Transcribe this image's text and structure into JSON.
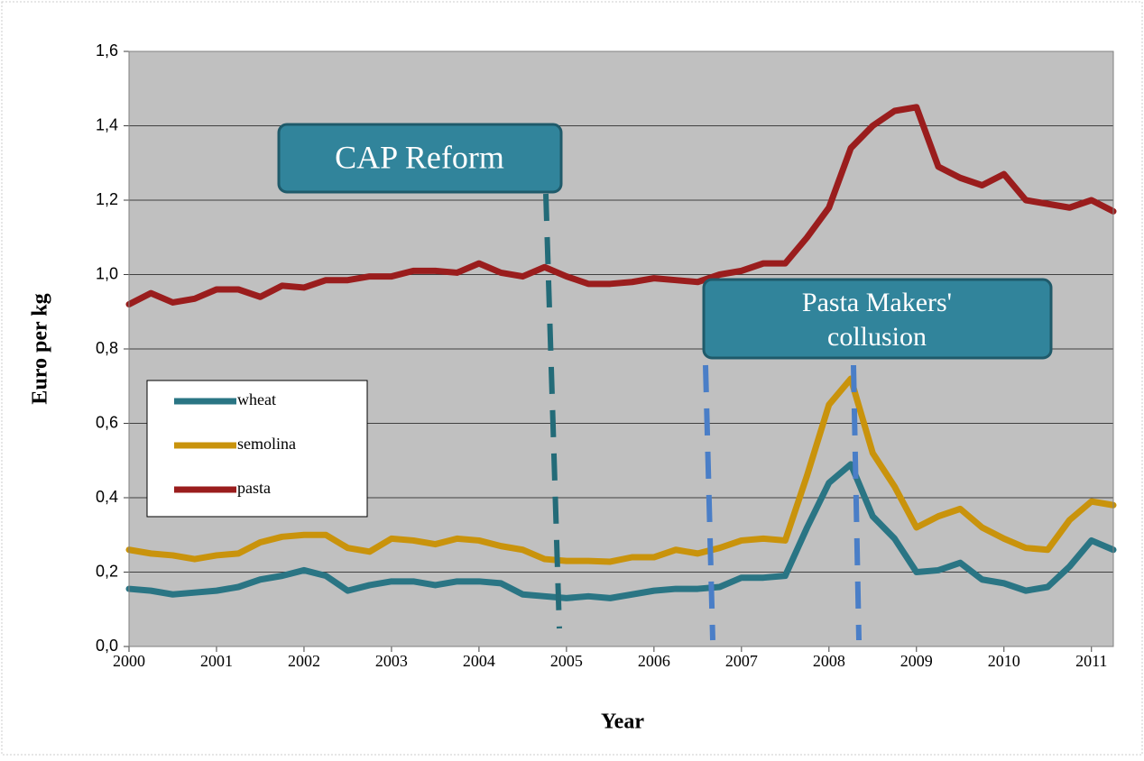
{
  "chart_data": {
    "type": "line",
    "x_label": "Year",
    "y_label": "Euro per kg",
    "x": [
      2000,
      2000.25,
      2000.5,
      2000.75,
      2001,
      2001.25,
      2001.5,
      2001.75,
      2002,
      2002.25,
      2002.5,
      2002.75,
      2003,
      2003.25,
      2003.5,
      2003.75,
      2004,
      2004.25,
      2004.5,
      2004.75,
      2005,
      2005.25,
      2005.5,
      2005.75,
      2006,
      2006.25,
      2006.5,
      2006.75,
      2007,
      2007.25,
      2007.5,
      2007.75,
      2008,
      2008.25,
      2008.5,
      2008.75,
      2009,
      2009.25,
      2009.5,
      2009.75,
      2010,
      2010.25,
      2010.5,
      2010.75,
      2011,
      2011.25
    ],
    "series": [
      {
        "name": "wheat",
        "color": "#2a7584",
        "values": [
          0.155,
          0.15,
          0.14,
          0.145,
          0.15,
          0.16,
          0.18,
          0.19,
          0.205,
          0.19,
          0.15,
          0.165,
          0.175,
          0.175,
          0.165,
          0.175,
          0.175,
          0.17,
          0.14,
          0.135,
          0.13,
          0.135,
          0.13,
          0.14,
          0.15,
          0.155,
          0.155,
          0.16,
          0.185,
          0.185,
          0.19,
          0.32,
          0.44,
          0.49,
          0.35,
          0.29,
          0.2,
          0.205,
          0.225,
          0.18,
          0.17,
          0.15,
          0.16,
          0.215,
          0.285,
          0.26
        ]
      },
      {
        "name": "semolina",
        "color": "#c9930c",
        "values": [
          0.26,
          0.25,
          0.245,
          0.235,
          0.245,
          0.25,
          0.28,
          0.295,
          0.3,
          0.3,
          0.265,
          0.255,
          0.29,
          0.285,
          0.275,
          0.29,
          0.285,
          0.27,
          0.26,
          0.235,
          0.23,
          0.23,
          0.228,
          0.24,
          0.24,
          0.26,
          0.25,
          0.265,
          0.285,
          0.29,
          0.285,
          0.46,
          0.65,
          0.72,
          0.52,
          0.43,
          0.32,
          0.35,
          0.37,
          0.32,
          0.29,
          0.265,
          0.26,
          0.34,
          0.39,
          0.38
        ]
      },
      {
        "name": "pasta",
        "color": "#9a1d1d",
        "values": [
          0.92,
          0.95,
          0.925,
          0.935,
          0.96,
          0.96,
          0.94,
          0.97,
          0.965,
          0.985,
          0.985,
          0.995,
          0.995,
          1.01,
          1.01,
          1.005,
          1.03,
          1.005,
          0.995,
          1.02,
          0.995,
          0.975,
          0.975,
          0.98,
          0.99,
          0.985,
          0.98,
          1.0,
          1.01,
          1.03,
          1.03,
          1.1,
          1.18,
          1.34,
          1.4,
          1.44,
          1.45,
          1.29,
          1.26,
          1.24,
          1.27,
          1.2,
          1.19,
          1.18,
          1.2,
          1.17
        ]
      }
    ],
    "xlim": [
      2000,
      2011.25
    ],
    "xticks": [
      2000,
      2001,
      2002,
      2003,
      2004,
      2005,
      2006,
      2007,
      2008,
      2009,
      2010,
      2011
    ],
    "ylim": [
      0,
      1.6
    ],
    "yticks": [
      {
        "value": 0,
        "label": "0,0"
      },
      {
        "value": 0.2,
        "label": "0,2"
      },
      {
        "value": 0.4,
        "label": "0,4"
      },
      {
        "value": 0.6,
        "label": "0,6"
      },
      {
        "value": 0.8,
        "label": "0,8"
      },
      {
        "value": 1.0,
        "label": "1,0"
      },
      {
        "value": 1.2,
        "label": "1,2"
      },
      {
        "value": 1.4,
        "label": "1,4"
      },
      {
        "value": 1.6,
        "label": "1,6"
      }
    ],
    "grid": true,
    "legend": "left",
    "annotations": [
      "CAP Reform",
      "Pasta Makers'",
      "collusion"
    ]
  }
}
